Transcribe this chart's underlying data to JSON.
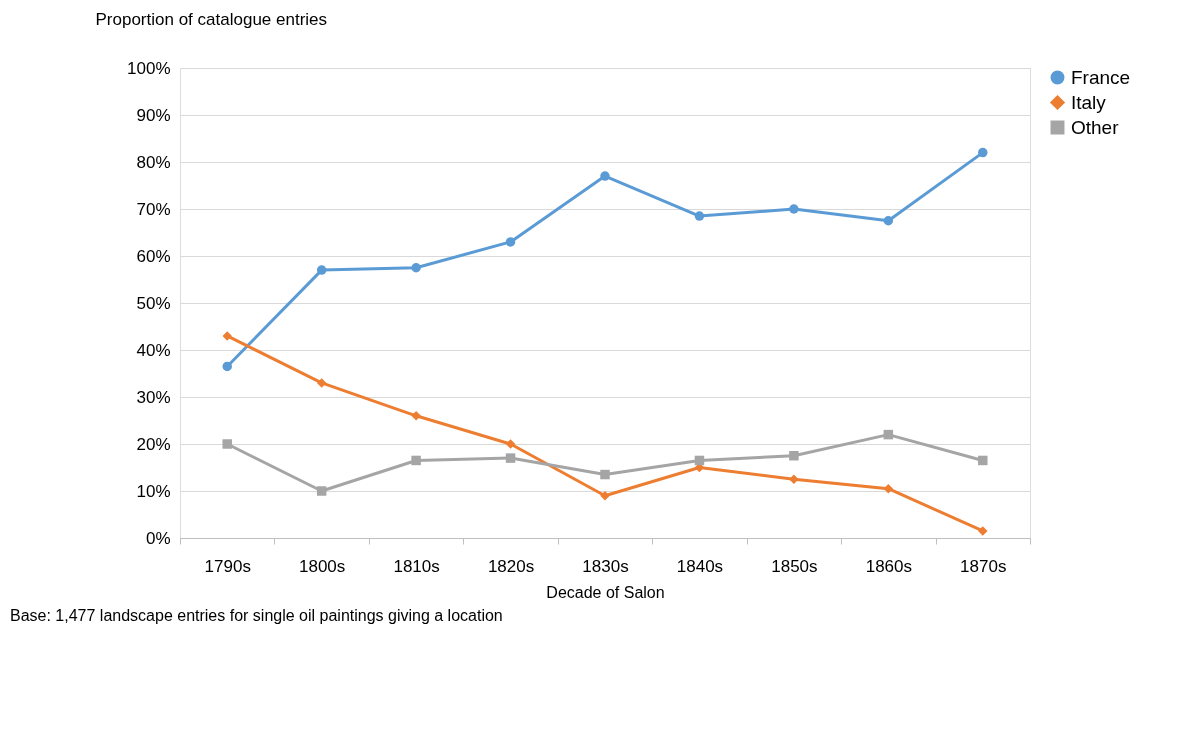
{
  "chart_data": {
    "type": "line",
    "ylabel": "Proportion of catalogue entries",
    "xlabel": "Decade of Salon",
    "categories": [
      "1790s",
      "1800s",
      "1810s",
      "1820s",
      "1830s",
      "1840s",
      "1850s",
      "1860s",
      "1870s"
    ],
    "series": [
      {
        "name": "France",
        "color": "#5b9bd5",
        "marker": "circle",
        "values": [
          36.5,
          57,
          57.5,
          63,
          77,
          68.5,
          70,
          67.5,
          82
        ]
      },
      {
        "name": "Italy",
        "color": "#ed7d31",
        "marker": "diamond",
        "values": [
          43,
          33,
          26,
          20,
          9,
          15,
          12.5,
          10.5,
          1.5
        ]
      },
      {
        "name": "Other",
        "color": "#a5a5a5",
        "marker": "square",
        "values": [
          20,
          10,
          16.5,
          17,
          13.5,
          16.5,
          17.5,
          22,
          16.5
        ]
      }
    ],
    "ylim": [
      0,
      100
    ],
    "yticks": [
      {
        "value": 0,
        "label": "0%"
      },
      {
        "value": 10,
        "label": "10%"
      },
      {
        "value": 20,
        "label": "20%"
      },
      {
        "value": 30,
        "label": "30%"
      },
      {
        "value": 40,
        "label": "40%"
      },
      {
        "value": 50,
        "label": "50%"
      },
      {
        "value": 60,
        "label": "60%"
      },
      {
        "value": 70,
        "label": "70%"
      },
      {
        "value": 80,
        "label": "80%"
      },
      {
        "value": 90,
        "label": "90%"
      },
      {
        "value": 100,
        "label": "100%"
      }
    ],
    "grid": "y",
    "legend": "right",
    "line_style": "solid",
    "annotations": [
      "Base: 1,477 landscape entries for single oil paintings giving a location"
    ]
  }
}
